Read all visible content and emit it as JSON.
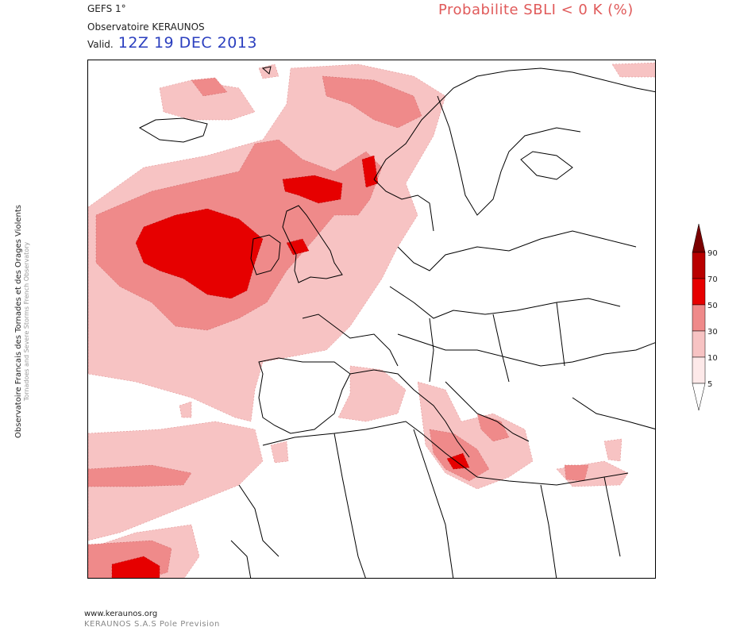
{
  "header": {
    "model": "GEFS 1°",
    "source": "Observatoire KERAUNOS",
    "valid_label": "Valid.",
    "valid_date": "12Z 19 DEC 2013",
    "product_title": "Probabilite SBLI < 0 K (%)"
  },
  "side_credit": {
    "line1": "Observatoire Francais des Tornades et des Orages Violents",
    "line2": "Tornadoes and Severe Storms French Observatory"
  },
  "legend": {
    "levels": [
      "5",
      "10",
      "30",
      "50",
      "70",
      "90"
    ],
    "colors": [
      "#fde9e9",
      "#f7c3c3",
      "#ef8a8a",
      "#e60000",
      "#b90000",
      "#7a0000"
    ]
  },
  "footer": {
    "url": "www.keraunos.org",
    "company": "KERAUNOS S.A.S Pole Prevision"
  }
}
